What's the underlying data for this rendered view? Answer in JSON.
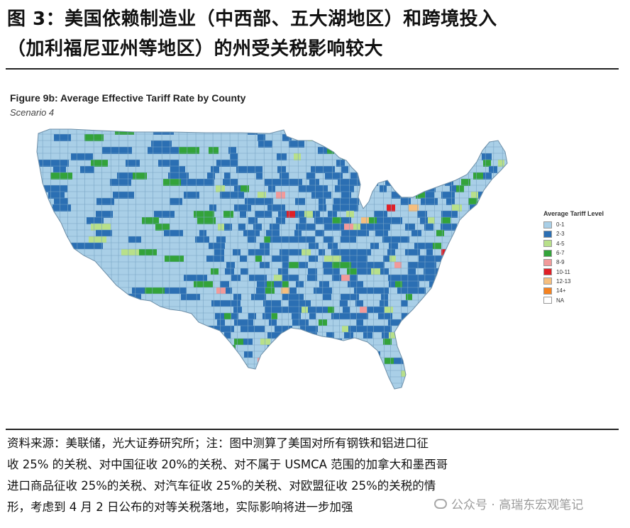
{
  "figure": {
    "title_line1": "图 3：美国依赖制造业（中西部、五大湖地区）和跨境投入",
    "title_line2": "（加利福尼亚州等地区）的州受关税影响较大"
  },
  "map": {
    "title": "Figure 9b: Average Effective Tariff Rate by County",
    "subtitle": "Scenario 4",
    "colors": {
      "c0": "#a9cfe7",
      "c2": "#2b6fb3",
      "c4": "#b8e08a",
      "c6": "#33a33a",
      "c8": "#f29a9a",
      "c10": "#e01f26",
      "c12": "#f6bf7e",
      "c14": "#f58220",
      "na": "#ffffff"
    }
  },
  "legend": {
    "title": "Average Tariff Level",
    "items": [
      {
        "label": "0-1",
        "color": "#a9cfe7"
      },
      {
        "label": "2-3",
        "color": "#2b6fb3"
      },
      {
        "label": "4-5",
        "color": "#b8e08a"
      },
      {
        "label": "6-7",
        "color": "#33a33a"
      },
      {
        "label": "8-9",
        "color": "#f29a9a"
      },
      {
        "label": "10-11",
        "color": "#e01f26"
      },
      {
        "label": "12-13",
        "color": "#f6bf7e"
      },
      {
        "label": "14+",
        "color": "#f58220"
      },
      {
        "label": "NA",
        "color": "#ffffff"
      }
    ]
  },
  "notes": {
    "line1": "资料来源：美联储，光大证券研究所；注：图中测算了美国对所有钢铁和铝进口征",
    "line2": "收 25% 的关税、对中国征收 20%的关税、对不属于 USMCA 范围的加拿大和墨西哥",
    "line3": "进口商品征收  25%的关税、对汽车征收  25%的关税、对欧盟征收  25%的关税的情",
    "line4": "形，考虑到 4 月 2 日公布的对等关税落地，实际影响将进一步加强"
  },
  "watermark": {
    "text": "公众号 · 高瑞东宏观笔记"
  }
}
